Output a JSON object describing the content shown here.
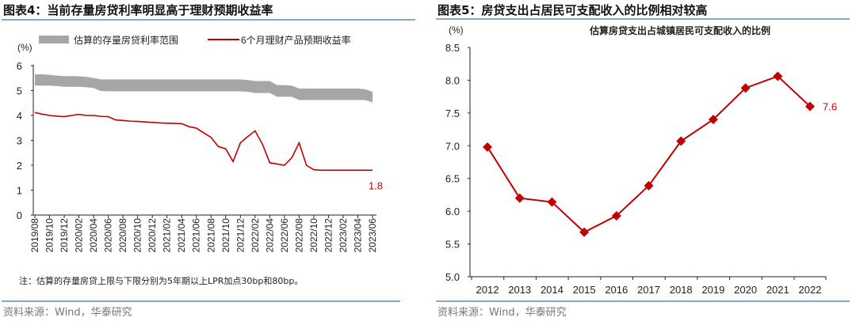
{
  "left": {
    "title": "图表4：当前存量房贷利率明显高于理财预期收益率",
    "note": "注：估算的存量房贷上限与下限分别为5年期以上LPR加点30bp和80bp。",
    "source": "资料来源：Wind，华泰研究"
  },
  "right": {
    "title": "图表5：房贷支出占居民可支配收入的比例相对较高",
    "source": "资料来源：Wind，华泰研究"
  },
  "chart_data": [
    {
      "type": "area+line",
      "ylabel": "(%)",
      "ylim": [
        0,
        6
      ],
      "yticks": [
        "0",
        "1",
        "2",
        "3",
        "4",
        "5",
        "6"
      ],
      "xticks": [
        "2019/08",
        "2019/10",
        "2019/12",
        "2020/02",
        "2020/04",
        "2020/06",
        "2020/08",
        "2020/10",
        "2020/12",
        "2021/02",
        "2021/04",
        "2021/06",
        "2021/08",
        "2021/10",
        "2021/12",
        "2022/02",
        "2022/04",
        "2022/06",
        "2022/08",
        "2022/10",
        "2022/12",
        "2023/02",
        "2023/04",
        "2023/06"
      ],
      "legend_position": "top",
      "series": [
        {
          "name": "估算的存量房贷利率范围",
          "color": "#a6a6a6",
          "lower": [
            5.2,
            5.2,
            5.2,
            5.18,
            5.15,
            5.15,
            5.15,
            5.13,
            5.1,
            4.98,
            4.97,
            4.97,
            4.97,
            4.97,
            4.97,
            4.97,
            4.97,
            4.97,
            4.97,
            4.97,
            4.97,
            4.97,
            4.97,
            4.97,
            4.97,
            4.97,
            4.97,
            4.97,
            4.97,
            4.95,
            4.9,
            4.9,
            4.9,
            4.75,
            4.75,
            4.75,
            4.62,
            4.62,
            4.62,
            4.62,
            4.62,
            4.62,
            4.62,
            4.62,
            4.62,
            4.62,
            4.52
          ],
          "upper": [
            5.65,
            5.65,
            5.63,
            5.6,
            5.58,
            5.58,
            5.57,
            5.55,
            5.5,
            5.45,
            5.45,
            5.45,
            5.45,
            5.45,
            5.45,
            5.45,
            5.45,
            5.45,
            5.45,
            5.45,
            5.45,
            5.45,
            5.45,
            5.45,
            5.45,
            5.45,
            5.45,
            5.45,
            5.45,
            5.42,
            5.38,
            5.38,
            5.38,
            5.22,
            5.22,
            5.2,
            5.08,
            5.08,
            5.08,
            5.08,
            5.08,
            5.08,
            5.08,
            5.08,
            5.08,
            5.05,
            4.95
          ]
        },
        {
          "name": "6个月理财产品预期收益率",
          "color": "#c00000",
          "values": [
            4.12,
            4.05,
            4.0,
            3.97,
            3.95,
            4.0,
            4.04,
            4.0,
            4.0,
            3.96,
            3.95,
            3.82,
            3.8,
            3.77,
            3.76,
            3.74,
            3.72,
            3.7,
            3.69,
            3.68,
            3.67,
            3.55,
            3.49,
            3.3,
            3.12,
            2.75,
            2.66,
            2.15,
            2.9,
            3.15,
            3.38,
            2.85,
            2.1,
            2.05,
            2.0,
            2.3,
            2.9,
            2.0,
            1.82,
            1.8,
            1.8,
            1.8,
            1.8,
            1.8,
            1.8,
            1.8,
            1.8
          ],
          "end_label": "1.8"
        }
      ]
    },
    {
      "type": "line",
      "title": "估算房贷支出占城镇居民可支配收入的比例",
      "ylabel": "(%)",
      "ylim": [
        5.0,
        8.5
      ],
      "yticks": [
        "5.0",
        "5.5",
        "6.0",
        "6.5",
        "7.0",
        "7.5",
        "8.0",
        "8.5"
      ],
      "categories": [
        "2012",
        "2013",
        "2014",
        "2015",
        "2016",
        "2017",
        "2018",
        "2019",
        "2020",
        "2021",
        "2022"
      ],
      "values": [
        6.98,
        6.2,
        6.14,
        5.68,
        5.93,
        6.39,
        7.07,
        7.4,
        7.88,
        8.06,
        7.6
      ],
      "color": "#c00000",
      "marker": "diamond",
      "end_label": "7.6"
    }
  ]
}
